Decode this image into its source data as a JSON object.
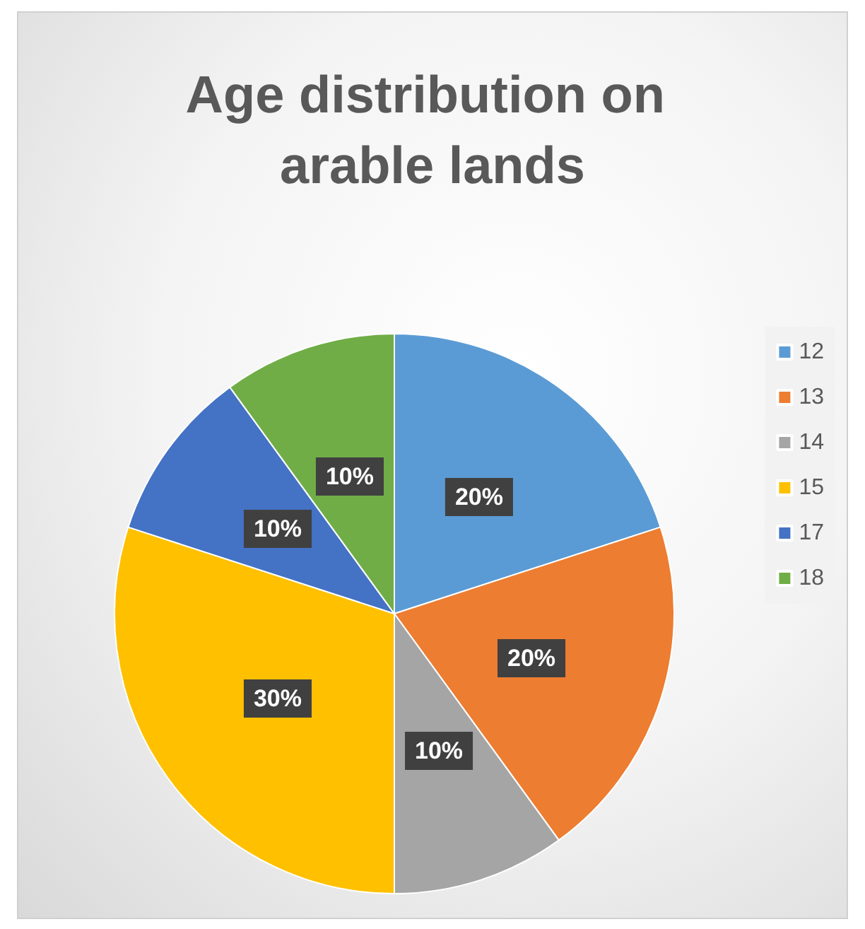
{
  "chart_data": {
    "type": "pie",
    "title": "Age distribution on arable lands",
    "categories": [
      "12",
      "13",
      "14",
      "15",
      "17",
      "18"
    ],
    "values": [
      20,
      20,
      10,
      30,
      10,
      10
    ],
    "value_labels": [
      "20%",
      "20%",
      "10%",
      "30%",
      "10%",
      "10%"
    ],
    "colors": [
      "#5b9bd5",
      "#ed7d31",
      "#a5a5a5",
      "#ffc000",
      "#4472c4",
      "#70ad47"
    ],
    "legend": "right"
  }
}
